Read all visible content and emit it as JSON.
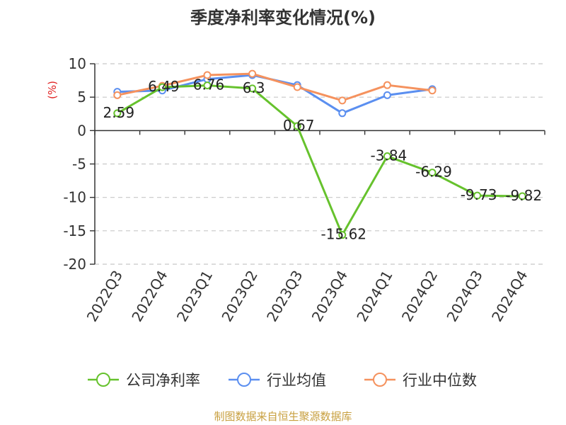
{
  "chart_data": {
    "type": "line",
    "title": "季度净利率变化情况(%)",
    "ylabel": "(%)",
    "xlabel": "",
    "categories": [
      "2022Q3",
      "2022Q4",
      "2023Q1",
      "2023Q2",
      "2023Q3",
      "2023Q4",
      "2024Q1",
      "2024Q2",
      "2024Q3",
      "2024Q4"
    ],
    "ylim": [
      -20,
      10
    ],
    "yticks": [
      10,
      5,
      0,
      -5,
      -10,
      -15,
      -20
    ],
    "grid": true,
    "legend_position": "bottom",
    "series": [
      {
        "name": "公司净利率",
        "color": "#66c22d",
        "values": [
          2.59,
          6.49,
          6.76,
          6.3,
          0.67,
          -15.62,
          -3.84,
          -6.29,
          -9.73,
          -9.82
        ],
        "labels": [
          "2.59",
          "6.49",
          "6.76",
          "6.3",
          "0.67",
          "-15.62",
          "-3.84",
          "-6.29",
          "-9.73",
          "-9.82"
        ]
      },
      {
        "name": "行业均值",
        "color": "#5b8ff0",
        "values": [
          5.8,
          6.0,
          7.7,
          8.3,
          6.8,
          2.6,
          5.3,
          6.2,
          null,
          null
        ]
      },
      {
        "name": "行业中位数",
        "color": "#f5925e",
        "values": [
          5.3,
          6.7,
          8.3,
          8.5,
          6.5,
          4.5,
          6.8,
          6.0,
          null,
          null
        ]
      }
    ],
    "source": "制图数据来自恒生聚源数据库"
  }
}
